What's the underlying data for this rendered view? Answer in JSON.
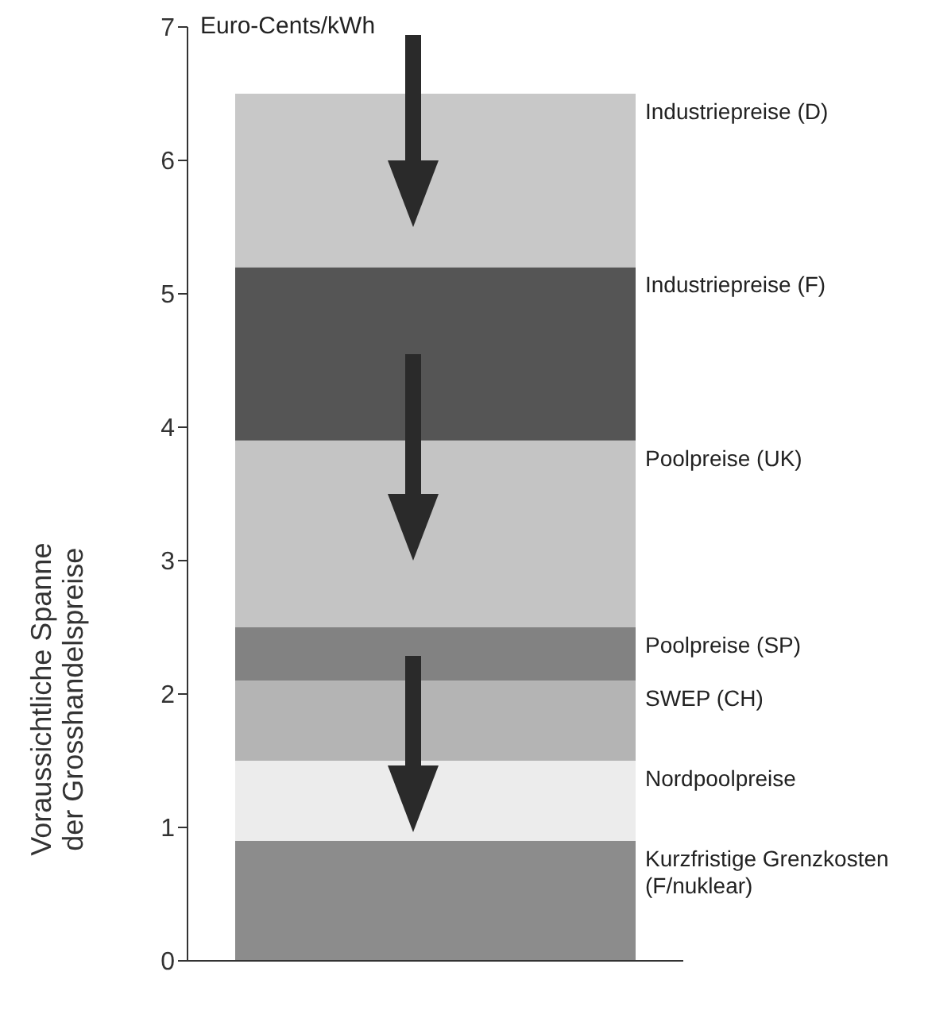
{
  "chart_data": {
    "type": "bar",
    "stacked": true,
    "categories": [
      null
    ],
    "ylabel": "Voraussichtliche Spanne\nder Grosshandelspreise",
    "annotations": [
      "Euro-Cents/kWh"
    ],
    "ylim": [
      0,
      7
    ],
    "yticks": [
      0,
      1,
      2,
      3,
      4,
      5,
      6,
      7
    ],
    "series": [
      {
        "name": "Kurzfristige Grenzkosten (F/nuklear)",
        "color": "#8c8c8c",
        "values": [
          0.9
        ]
      },
      {
        "name": "Nordpoolpreise",
        "color": "#ececec",
        "values": [
          0.6
        ]
      },
      {
        "name": "SWEP (CH)",
        "color": "#b4b4b4",
        "values": [
          0.6
        ]
      },
      {
        "name": "Poolpreise (SP)",
        "color": "#828282",
        "values": [
          0.4
        ]
      },
      {
        "name": "Poolpreise (UK)",
        "color": "#c4c4c4",
        "values": [
          1.4
        ]
      },
      {
        "name": "Industriepreise (F)",
        "color": "#555555",
        "values": [
          1.3
        ]
      },
      {
        "name": "Industriepreise (D)",
        "color": "#c8c8c8",
        "values": [
          1.3
        ]
      }
    ]
  }
}
